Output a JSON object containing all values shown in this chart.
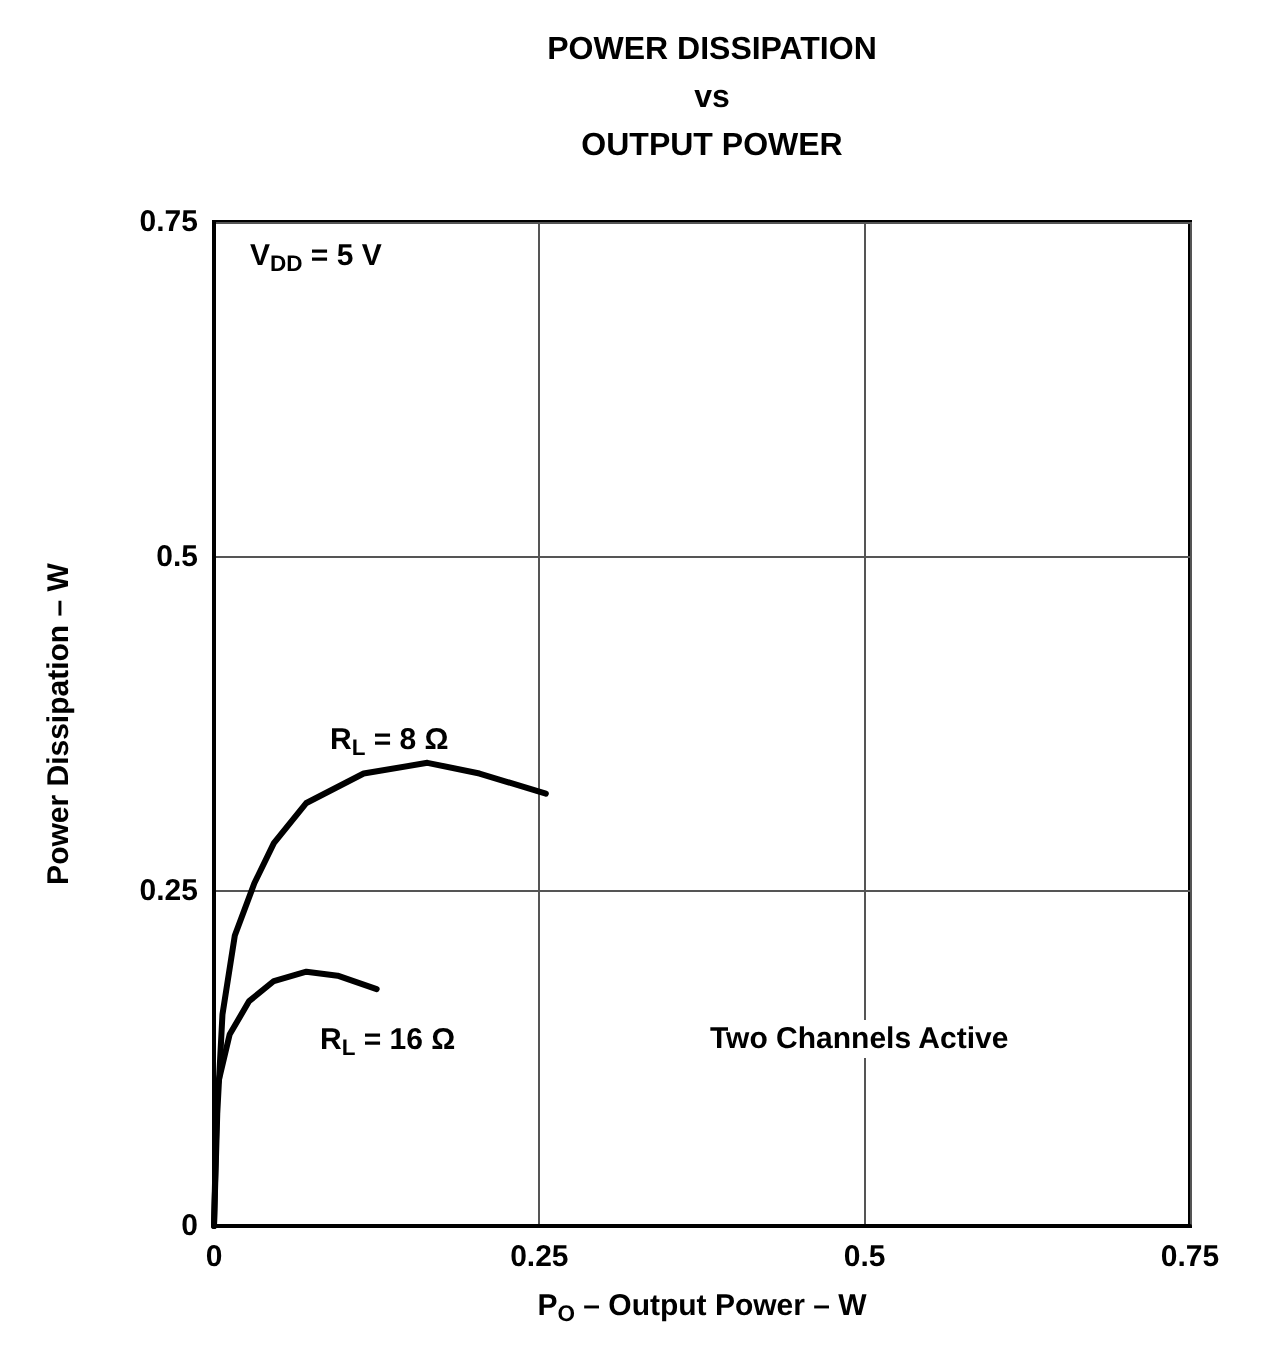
{
  "chart_data": {
    "type": "line",
    "title": "POWER DISSIPATION\nvs\nOUTPUT POWER",
    "xlabel": "P$_{O}$ – Output Power – W",
    "ylabel": "Power Dissipation – W",
    "xlim": [
      0,
      0.75
    ],
    "xticks": [
      0,
      0.25,
      0.5,
      0.75
    ],
    "ylim": [
      0,
      0.75
    ],
    "yticks": [
      0,
      0.25,
      0.5,
      0.75
    ],
    "grid": true,
    "marker": "none",
    "line_style": "solid",
    "series": [
      {
        "color": "#000000",
        "x": [
          0,
          0.0025,
          0.0065,
          0.016,
          0.031,
          0.046,
          0.071,
          0.115,
          0.164,
          0.204,
          0.255
        ],
        "values": [
          0,
          0.084,
          0.158,
          0.217,
          0.256,
          0.286,
          0.316,
          0.338,
          0.346,
          0.338,
          0.323
        ]
      },
      {
        "color": "#000000",
        "x": [
          0,
          0.0025,
          0.012,
          0.027,
          0.046,
          0.071,
          0.095,
          0.125
        ],
        "values": [
          0,
          0.104,
          0.143,
          0.168,
          0.183,
          0.19,
          0.187,
          0.177
        ]
      }
    ],
    "annotations": [
      "V$_{DD}$ = 5 V",
      "R$_{L}$ = 8 Ω",
      "R$_{L}$ = 16 Ω",
      "Two Channels Active"
    ]
  }
}
